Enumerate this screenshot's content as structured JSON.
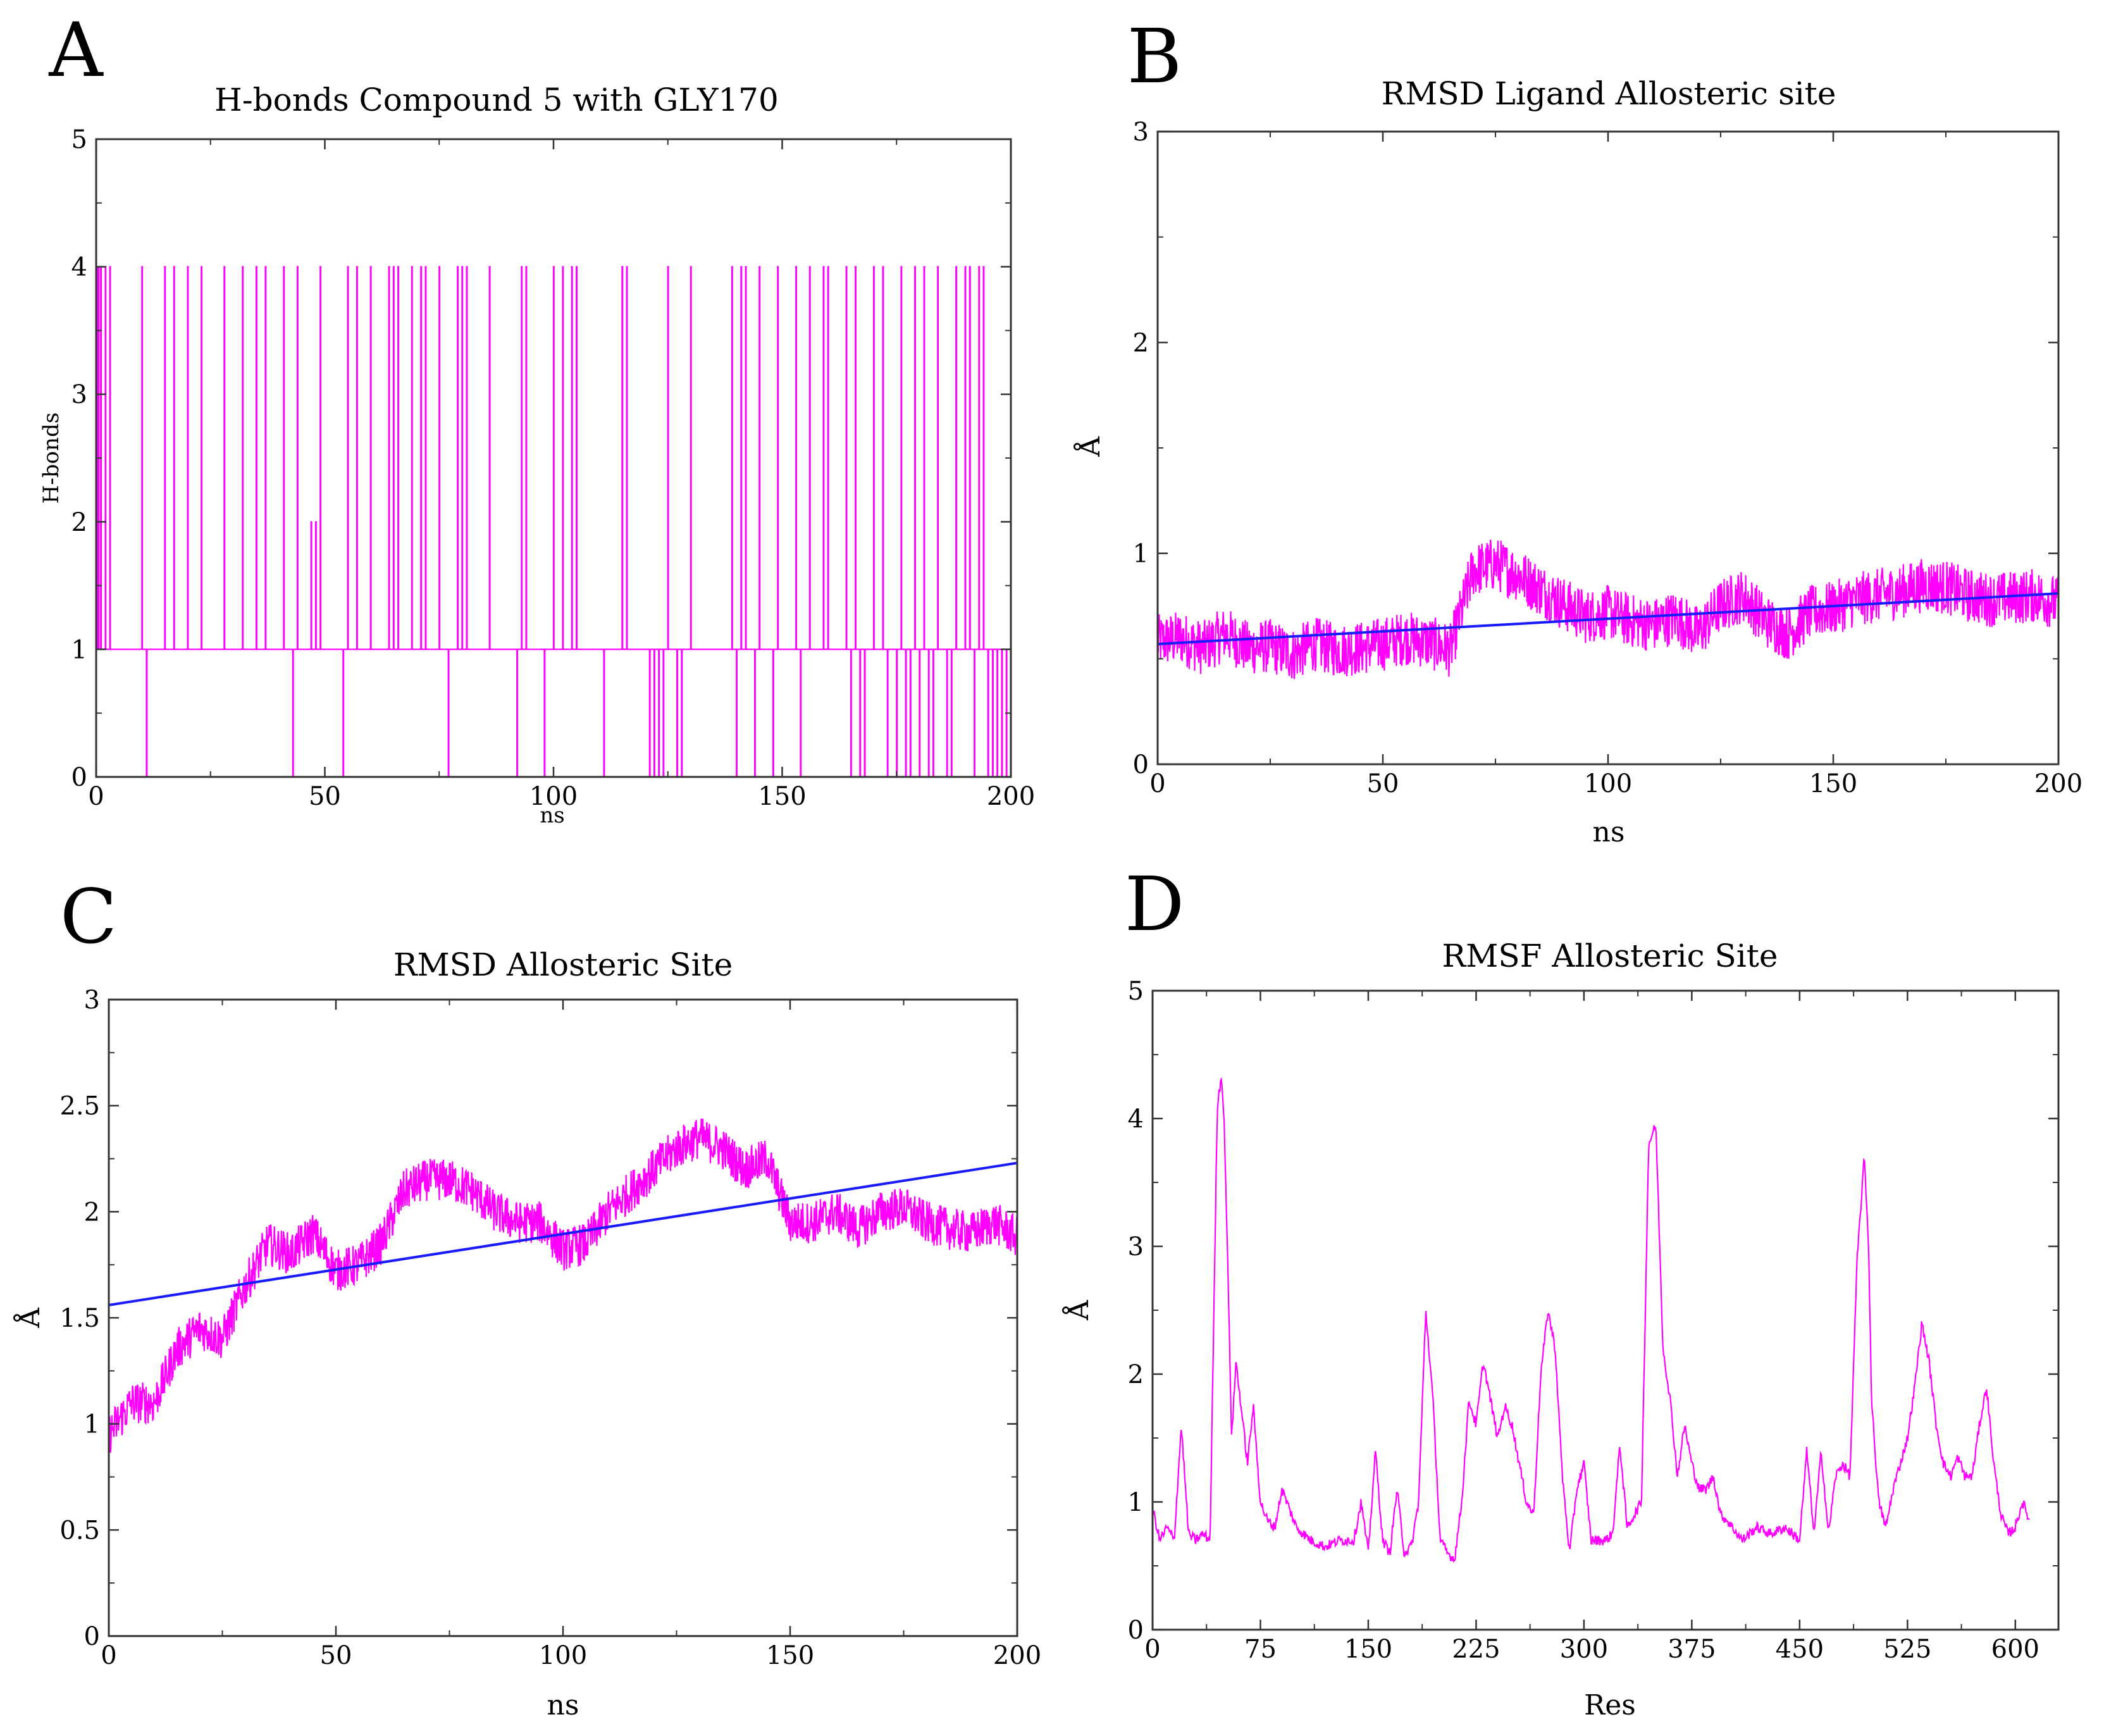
{
  "chart_data": [
    {
      "panel": "A",
      "type": "line",
      "title": "H-bonds Compound 5 with GLY170",
      "xlabel": "ns",
      "ylabel": "H-bonds",
      "xlim": [
        0,
        200
      ],
      "ylim": [
        0,
        5
      ],
      "xticks": [
        0,
        50,
        100,
        150,
        200
      ],
      "yticks": [
        0,
        1,
        2,
        3,
        4,
        5
      ],
      "series": [
        {
          "name": "H-bonds",
          "color": "#ff00ff",
          "baseline": 1,
          "spikes_to_4": [
            0.5,
            1,
            2,
            3,
            10,
            15,
            17,
            20,
            23,
            28,
            32,
            35,
            37,
            41,
            44,
            49,
            55,
            57,
            60,
            64,
            65,
            66,
            69,
            71,
            72,
            75,
            79,
            80,
            81,
            86,
            93,
            94,
            100,
            102,
            104,
            105,
            115,
            116,
            125,
            130,
            139,
            141,
            142,
            145,
            149,
            153,
            156,
            159,
            160,
            164,
            166,
            170,
            172,
            176,
            179,
            181,
            184,
            188,
            190,
            191,
            193,
            194
          ],
          "dips_to_0": [
            11,
            15,
            23,
            35,
            43,
            44,
            48,
            54,
            57,
            77,
            79,
            92,
            98,
            111,
            121,
            122,
            123,
            124,
            125,
            127,
            128,
            139,
            140,
            141,
            142,
            144,
            145,
            148,
            154,
            164,
            165,
            166,
            167,
            168,
            173,
            175,
            176,
            177,
            178,
            180,
            182,
            183,
            186,
            187,
            190,
            192,
            195,
            196,
            197,
            198,
            199
          ],
          "spikes_to_2": [
            47,
            48
          ],
          "spikes_to_3": [
            2,
            37,
            130
          ]
        }
      ]
    },
    {
      "panel": "B",
      "type": "line",
      "title": "RMSD Ligand Allosteric site",
      "xlabel": "ns",
      "ylabel": "Å",
      "xlim": [
        0,
        200
      ],
      "ylim": [
        0,
        3
      ],
      "xticks": [
        0,
        50,
        100,
        150,
        200
      ],
      "yticks": [
        0,
        1,
        2,
        3
      ],
      "series": [
        {
          "name": "RMSD",
          "color": "#ff00ff",
          "x": [
            0,
            5,
            10,
            15,
            20,
            25,
            30,
            35,
            40,
            45,
            50,
            55,
            60,
            65,
            70,
            75,
            80,
            85,
            90,
            95,
            100,
            105,
            110,
            115,
            120,
            125,
            130,
            135,
            140,
            145,
            150,
            155,
            160,
            165,
            170,
            175,
            180,
            185,
            190,
            195,
            200
          ],
          "y": [
            0.58,
            0.6,
            0.55,
            0.62,
            0.55,
            0.56,
            0.52,
            0.57,
            0.54,
            0.55,
            0.57,
            0.6,
            0.58,
            0.54,
            0.92,
            0.95,
            0.9,
            0.83,
            0.76,
            0.7,
            0.72,
            0.68,
            0.66,
            0.7,
            0.62,
            0.75,
            0.8,
            0.68,
            0.62,
            0.72,
            0.74,
            0.78,
            0.8,
            0.82,
            0.85,
            0.84,
            0.8,
            0.78,
            0.79,
            0.8,
            0.76
          ],
          "noise": 0.13
        },
        {
          "name": "trend",
          "color": "#1a1aff",
          "x": [
            0,
            200
          ],
          "y": [
            0.57,
            0.81
          ]
        }
      ]
    },
    {
      "panel": "C",
      "type": "line",
      "title": "RMSD Allosteric Site",
      "xlabel": "ns",
      "ylabel": "Å",
      "xlim": [
        0,
        200
      ],
      "ylim": [
        0,
        3
      ],
      "xticks": [
        0,
        50,
        100,
        150,
        200
      ],
      "yticks": [
        0,
        0.5,
        1,
        1.5,
        2,
        2.5,
        3
      ],
      "series": [
        {
          "name": "RMSD",
          "color": "#ff00ff",
          "x": [
            0,
            5,
            10,
            15,
            20,
            25,
            30,
            35,
            40,
            45,
            50,
            55,
            60,
            65,
            70,
            75,
            80,
            85,
            90,
            95,
            100,
            105,
            110,
            115,
            120,
            125,
            130,
            135,
            140,
            145,
            150,
            155,
            160,
            165,
            170,
            175,
            180,
            185,
            190,
            195,
            200
          ],
          "y": [
            0.95,
            1.1,
            1.1,
            1.35,
            1.45,
            1.4,
            1.65,
            1.85,
            1.8,
            1.9,
            1.72,
            1.75,
            1.85,
            2.1,
            2.15,
            2.15,
            2.1,
            2.0,
            1.95,
            1.95,
            1.82,
            1.85,
            2.0,
            2.1,
            2.2,
            2.3,
            2.35,
            2.3,
            2.2,
            2.25,
            1.95,
            1.95,
            2.0,
            1.92,
            2.0,
            2.02,
            1.95,
            1.92,
            1.9,
            1.95,
            1.88
          ],
          "noise": 0.1
        },
        {
          "name": "trend",
          "color": "#1a1aff",
          "x": [
            0,
            200
          ],
          "y": [
            1.56,
            2.23
          ]
        }
      ]
    },
    {
      "panel": "D",
      "type": "line",
      "title": "RMSF Allosteric Site",
      "xlabel": "Res",
      "ylabel": "Å",
      "xlim": [
        0,
        630
      ],
      "ylim": [
        0,
        5
      ],
      "xticks": [
        0,
        75,
        150,
        225,
        300,
        375,
        450,
        525,
        600
      ],
      "yticks": [
        0,
        1,
        2,
        3,
        4,
        5
      ],
      "series": [
        {
          "name": "RMSF",
          "color": "#ff00ff",
          "x": [
            0,
            5,
            10,
            15,
            20,
            25,
            30,
            35,
            40,
            45,
            48,
            50,
            52,
            55,
            58,
            62,
            66,
            70,
            75,
            80,
            85,
            90,
            95,
            100,
            110,
            120,
            130,
            140,
            145,
            150,
            155,
            160,
            165,
            170,
            175,
            180,
            185,
            190,
            195,
            200,
            205,
            210,
            215,
            220,
            225,
            230,
            235,
            240,
            245,
            250,
            255,
            260,
            265,
            270,
            275,
            280,
            285,
            290,
            295,
            300,
            305,
            310,
            315,
            320,
            325,
            330,
            335,
            340,
            345,
            350,
            355,
            360,
            365,
            370,
            375,
            380,
            385,
            390,
            395,
            400,
            410,
            420,
            430,
            440,
            450,
            455,
            460,
            465,
            470,
            475,
            480,
            485,
            490,
            495,
            498,
            500,
            505,
            510,
            515,
            520,
            525,
            530,
            535,
            540,
            545,
            550,
            555,
            560,
            565,
            570,
            575,
            580,
            585,
            590,
            595,
            600,
            605,
            610
          ],
          "y": [
            0.95,
            0.7,
            0.8,
            0.7,
            1.6,
            0.75,
            0.7,
            0.75,
            0.7,
            4.1,
            4.35,
            3.9,
            3.0,
            1.5,
            2.1,
            1.7,
            1.3,
            1.75,
            1.0,
            0.85,
            0.8,
            1.1,
            0.95,
            0.8,
            0.7,
            0.65,
            0.7,
            0.7,
            1.0,
            0.6,
            1.4,
            0.7,
            0.6,
            1.1,
            0.6,
            0.65,
            1.0,
            2.5,
            1.8,
            0.7,
            0.6,
            0.55,
            1.0,
            1.8,
            1.6,
            2.1,
            1.8,
            1.5,
            1.75,
            1.6,
            1.3,
            1.0,
            0.9,
            2.0,
            2.5,
            2.2,
            1.2,
            0.6,
            1.1,
            1.3,
            0.7,
            0.7,
            0.7,
            0.75,
            1.45,
            0.8,
            0.9,
            1.0,
            3.8,
            3.95,
            2.2,
            1.8,
            1.2,
            1.6,
            1.3,
            1.1,
            1.1,
            1.2,
            0.9,
            0.85,
            0.7,
            0.8,
            0.75,
            0.8,
            0.7,
            1.4,
            0.75,
            1.4,
            0.75,
            1.2,
            1.3,
            1.2,
            2.9,
            3.7,
            3.0,
            1.8,
            1.0,
            0.8,
            1.1,
            1.3,
            1.5,
            1.9,
            2.4,
            2.1,
            1.6,
            1.3,
            1.2,
            1.35,
            1.2,
            1.2,
            1.6,
            1.9,
            1.3,
            0.9,
            0.75,
            0.8,
            1.0,
            0.85
          ]
        }
      ]
    }
  ]
}
